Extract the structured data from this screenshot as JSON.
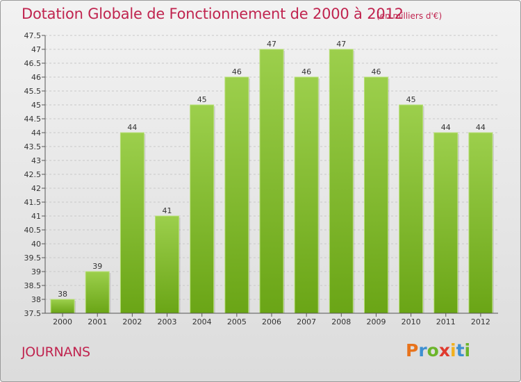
{
  "header": {
    "title": "Dotation Globale de Fonctionnement de 2000 à 2012",
    "unit": "(en milliers d'€)"
  },
  "footer": {
    "commune": "JOURNANS",
    "brand_letters": [
      "P",
      "r",
      "o",
      "x",
      "i",
      "t",
      "i"
    ],
    "brand_colors": [
      "#e8731c",
      "#3d8fd1",
      "#6bb52a",
      "#e03a2e",
      "#f2b01e",
      "#3d8fd1",
      "#6bb52a"
    ]
  },
  "colors": {
    "title": "#c0244f",
    "bar_light": "#9ccf4c",
    "bar_dark": "#6aa516",
    "grid": "#c8c8c8",
    "axis": "#555555",
    "text": "#333333"
  },
  "chart_data": {
    "type": "bar",
    "categories": [
      "2000",
      "2001",
      "2002",
      "2003",
      "2004",
      "2005",
      "2006",
      "2007",
      "2008",
      "2009",
      "2010",
      "2011",
      "2012"
    ],
    "values": [
      38,
      39,
      44,
      41,
      45,
      46,
      47,
      46,
      47,
      46,
      45,
      44,
      44
    ],
    "data_labels": [
      "38",
      "39",
      "44",
      "41",
      "45",
      "46",
      "47",
      "46",
      "47",
      "46",
      "45",
      "44",
      "44"
    ],
    "ylim": [
      37.5,
      47.5
    ],
    "yticks": [
      37.5,
      38,
      38.5,
      39,
      39.5,
      40,
      40.5,
      41,
      41.5,
      42,
      42.5,
      43,
      43.5,
      44,
      44.5,
      45,
      45.5,
      46,
      46.5,
      47,
      47.5
    ],
    "ytick_labels": [
      "37.5",
      "38",
      "38.5",
      "39",
      "39.5",
      "40",
      "40.5",
      "41",
      "41.5",
      "42",
      "42.5",
      "43",
      "43.5",
      "44",
      "44.5",
      "45",
      "45.5",
      "46",
      "46.5",
      "47",
      "47.5"
    ],
    "grid": true,
    "legend": "none"
  }
}
